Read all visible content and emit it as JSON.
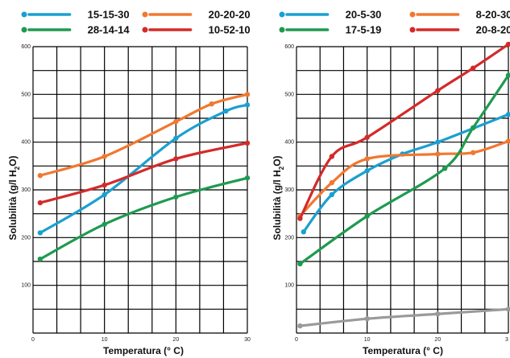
{
  "chart_data": [
    {
      "type": "line",
      "title": "",
      "xlabel": "Temperatura (° C)",
      "ylabel_main": "Solubilità (g/l H",
      "ylabel_sub": "2",
      "ylabel_tail": "O)",
      "xlim": [
        0,
        30
      ],
      "ylim": [
        0,
        600
      ],
      "x_ticks": [
        0,
        10,
        20,
        30
      ],
      "y_ticks": [
        100,
        200,
        300,
        400,
        500,
        600
      ],
      "grid": true,
      "legend_position": "top",
      "series": [
        {
          "name": "15-15-30",
          "color": "#1aa0d0",
          "x": [
            1,
            10,
            20,
            27,
            30
          ],
          "y": [
            210,
            290,
            408,
            465,
            478
          ]
        },
        {
          "name": "20-20-20",
          "color": "#f07830",
          "x": [
            1,
            10,
            20,
            25,
            30
          ],
          "y": [
            330,
            370,
            443,
            480,
            500
          ]
        },
        {
          "name": "28-14-14",
          "color": "#1f9a50",
          "x": [
            1,
            10,
            20,
            30
          ],
          "y": [
            155,
            228,
            285,
            325
          ]
        },
        {
          "name": "10-52-10",
          "color": "#d42a2a",
          "x": [
            1,
            10,
            20,
            30
          ],
          "y": [
            273,
            310,
            365,
            398
          ]
        }
      ]
    },
    {
      "type": "line",
      "title": "",
      "xlabel": "Temperatura (° C)",
      "ylabel_main": "Solubilità (g/l H",
      "ylabel_sub": "2",
      "ylabel_tail": "O)",
      "xlim": [
        0,
        30
      ],
      "ylim": [
        0,
        600
      ],
      "x_ticks": [
        0,
        10,
        20
      ],
      "x_tick_cut": "3",
      "y_ticks": [
        100,
        200,
        300,
        400,
        500,
        600
      ],
      "grid": true,
      "legend_position": "top",
      "series": [
        {
          "name": "20-5-30",
          "color": "#1aa0d0",
          "x": [
            1,
            5,
            10,
            15,
            20,
            30
          ],
          "y": [
            212,
            290,
            340,
            375,
            400,
            458
          ]
        },
        {
          "name": "8-20-30",
          "color": "#f07830",
          "x": [
            0.5,
            5,
            10,
            20,
            25,
            30
          ],
          "y": [
            245,
            315,
            365,
            375,
            378,
            402
          ]
        },
        {
          "name": "17-5-19",
          "color": "#1f9a50",
          "x": [
            0.5,
            10,
            21,
            25,
            30
          ],
          "y": [
            145,
            245,
            345,
            430,
            540
          ]
        },
        {
          "name": "20-8-20",
          "color": "#d42a2a",
          "x": [
            0.5,
            5,
            10,
            20,
            25,
            30
          ],
          "y": [
            240,
            370,
            410,
            508,
            555,
            605
          ]
        },
        {
          "name": "",
          "color": "#9a9a9a",
          "x": [
            0.5,
            10,
            20,
            30
          ],
          "y": [
            15,
            30,
            40,
            50
          ]
        }
      ]
    }
  ]
}
